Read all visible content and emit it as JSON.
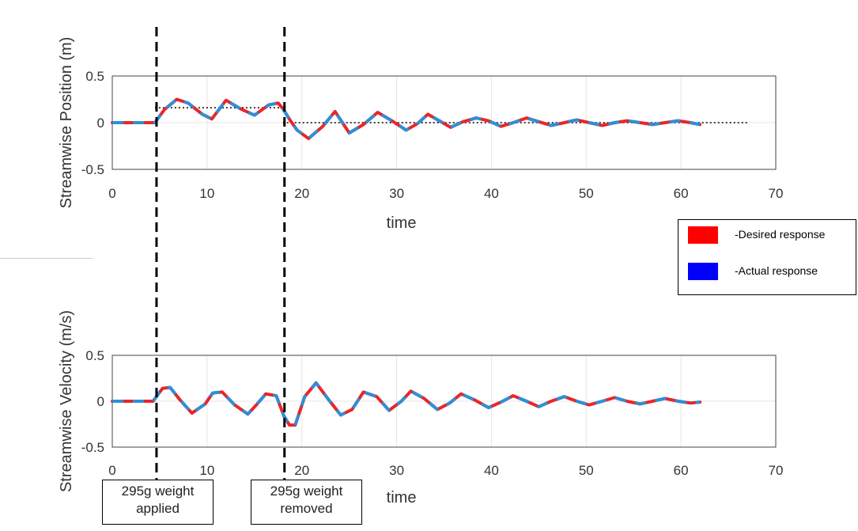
{
  "colors": {
    "desired": "#e8262a",
    "actual": "#2f8fd6",
    "legend_desired": "#ff0000",
    "legend_actual": "#0000ff"
  },
  "legend": {
    "desired_label": "-Desired response",
    "actual_label": "-Actual response"
  },
  "annotations": {
    "applied": {
      "line1": "295g weight",
      "line2": "applied",
      "time": 4.5
    },
    "removed": {
      "line1": "295g weight",
      "line2": "removed",
      "time": 18
    }
  },
  "chart_data": [
    {
      "type": "line",
      "xlabel": "time",
      "ylabel": "Streamwise Position (m)",
      "xlim": [
        0,
        70
      ],
      "ylim": [
        -0.5,
        0.5
      ],
      "xticks": [
        "0",
        "10",
        "20",
        "30",
        "40",
        "50",
        "60",
        "70"
      ],
      "yticks": [
        "-0.5",
        "0",
        "0.5"
      ],
      "grid": true,
      "reference_lines": [
        {
          "x_start": 4.5,
          "x_end": 18,
          "y": 0.16,
          "style": "dotted"
        },
        {
          "x_start": 18,
          "x_end": 67,
          "y": 0.0,
          "style": "dotted"
        }
      ],
      "x": [
        0,
        4.5,
        5.5,
        6.8,
        8,
        9.5,
        10.5,
        12,
        13.5,
        15,
        16.5,
        17.5,
        18,
        18.8,
        19.5,
        20.7,
        22.2,
        23.5,
        25,
        26.5,
        28,
        29.5,
        31,
        32.2,
        33.3,
        34.5,
        35.7,
        37,
        38.4,
        39.7,
        41,
        42.3,
        43.7,
        45,
        46.3,
        47.7,
        49,
        50.3,
        51.7,
        53,
        54.3,
        55.7,
        57,
        58.3,
        59.7,
        61,
        62
      ],
      "series": [
        {
          "values": [
            0,
            0,
            0.14,
            0.25,
            0.21,
            0.09,
            0.04,
            0.24,
            0.15,
            0.08,
            0.19,
            0.21,
            0.15,
            0.02,
            -0.08,
            -0.17,
            -0.04,
            0.12,
            -0.11,
            -0.02,
            0.11,
            0.02,
            -0.08,
            -0.01,
            0.09,
            0.02,
            -0.05,
            0.01,
            0.05,
            0.02,
            -0.04,
            0.0,
            0.05,
            0.01,
            -0.03,
            0.0,
            0.03,
            0.0,
            -0.03,
            0.0,
            0.02,
            0.0,
            -0.02,
            0.0,
            0.02,
            0.0,
            -0.02
          ]
        },
        {
          "values": [
            0,
            0,
            0.14,
            0.25,
            0.21,
            0.09,
            0.04,
            0.24,
            0.15,
            0.08,
            0.19,
            0.21,
            0.15,
            0.02,
            -0.08,
            -0.17,
            -0.04,
            0.12,
            -0.11,
            -0.02,
            0.11,
            0.02,
            -0.08,
            -0.01,
            0.09,
            0.02,
            -0.05,
            0.01,
            0.05,
            0.02,
            -0.04,
            0.0,
            0.05,
            0.01,
            -0.03,
            0.0,
            0.03,
            0.0,
            -0.03,
            0.0,
            0.02,
            0.0,
            -0.02,
            0.0,
            0.02,
            0.0,
            -0.02
          ]
        }
      ]
    },
    {
      "type": "line",
      "xlabel": "time",
      "ylabel": "Streamwise Velocity (m/s)",
      "xlim": [
        0,
        70
      ],
      "ylim": [
        -0.5,
        0.5
      ],
      "xticks": [
        "0",
        "10",
        "20",
        "30",
        "40",
        "50",
        "60",
        "70"
      ],
      "yticks": [
        "-0.5",
        "0",
        "0.5"
      ],
      "grid": true,
      "reference_lines": [],
      "x": [
        0,
        4.3,
        5.3,
        6.1,
        7.1,
        8.4,
        9.8,
        10.6,
        11.6,
        12.9,
        14.3,
        15.2,
        16.2,
        17.3,
        18.1,
        18.7,
        19.3,
        20.3,
        21.5,
        22.8,
        24.1,
        25.3,
        26.5,
        27.9,
        29.2,
        30.5,
        31.5,
        32.9,
        34.3,
        35.6,
        36.8,
        38.3,
        39.7,
        41,
        42.3,
        43.7,
        45,
        46.3,
        47.7,
        49,
        50.3,
        51.7,
        53,
        54.3,
        55.7,
        57,
        58.3,
        59.7,
        61,
        62
      ],
      "series": [
        {
          "values": [
            0,
            0,
            0.14,
            0.15,
            0.02,
            -0.13,
            -0.03,
            0.09,
            0.1,
            -0.04,
            -0.14,
            -0.04,
            0.08,
            0.06,
            -0.16,
            -0.26,
            -0.26,
            0.05,
            0.2,
            0.02,
            -0.15,
            -0.09,
            0.1,
            0.05,
            -0.1,
            0.0,
            0.11,
            0.03,
            -0.09,
            -0.02,
            0.08,
            0.01,
            -0.07,
            -0.01,
            0.06,
            0.0,
            -0.06,
            0.0,
            0.05,
            0.0,
            -0.04,
            0.0,
            0.04,
            0.0,
            -0.03,
            0.0,
            0.03,
            0.0,
            -0.02,
            -0.01
          ]
        },
        {
          "values": [
            0,
            0,
            0.14,
            0.15,
            0.02,
            -0.13,
            -0.03,
            0.09,
            0.1,
            -0.04,
            -0.14,
            -0.04,
            0.08,
            0.06,
            -0.16,
            -0.26,
            -0.26,
            0.05,
            0.2,
            0.02,
            -0.15,
            -0.09,
            0.1,
            0.05,
            -0.1,
            0.0,
            0.11,
            0.03,
            -0.09,
            -0.02,
            0.08,
            0.01,
            -0.07,
            -0.01,
            0.06,
            0.0,
            -0.06,
            0.0,
            0.05,
            0.0,
            -0.04,
            0.0,
            0.04,
            0.0,
            -0.03,
            0.0,
            0.03,
            0.0,
            -0.02,
            -0.01
          ]
        }
      ]
    }
  ]
}
